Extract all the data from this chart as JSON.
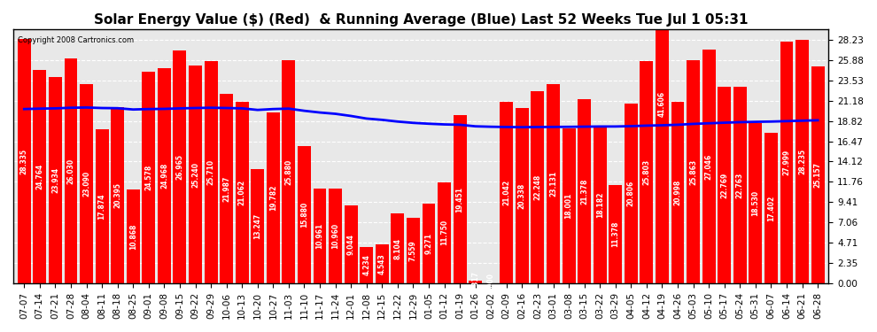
{
  "title": "Solar Energy Value ($) (Red)  & Running Average (Blue) Last 52 Weeks Tue Jul 1 05:31",
  "copyright": "Copyright 2008 Cartronics.com",
  "bar_color": "#ff0000",
  "avg_line_color": "#0000ff",
  "background_color": "#ffffff",
  "plot_bg_color": "#e8e8e8",
  "grid_color": "#ffffff",
  "categories": [
    "07-07",
    "07-14",
    "07-21",
    "07-28",
    "08-04",
    "08-11",
    "08-18",
    "08-25",
    "09-01",
    "09-08",
    "09-15",
    "09-22",
    "09-29",
    "10-06",
    "10-13",
    "10-20",
    "10-27",
    "11-03",
    "11-10",
    "11-17",
    "11-24",
    "12-01",
    "12-08",
    "12-15",
    "12-22",
    "12-29",
    "01-05",
    "01-12",
    "01-19",
    "01-26",
    "02-02",
    "02-09",
    "02-16",
    "02-23",
    "03-01",
    "03-08",
    "03-15",
    "03-22",
    "03-29",
    "04-05",
    "04-12",
    "04-19",
    "04-26",
    "05-03",
    "05-10",
    "05-17",
    "05-24",
    "05-31",
    "06-07",
    "06-14",
    "06-21",
    "06-28"
  ],
  "values": [
    28.335,
    24.764,
    23.934,
    26.03,
    23.09,
    17.874,
    20.395,
    10.868,
    24.578,
    24.968,
    26.965,
    25.24,
    25.71,
    21.987,
    21.062,
    13.247,
    19.782,
    25.88,
    15.88,
    10.961,
    10.96,
    9.044,
    4.234,
    4.543,
    8.104,
    7.559,
    9.271,
    11.75,
    19.451,
    0.317,
    0.0,
    21.042,
    20.338,
    22.248,
    23.131,
    18.001,
    21.378,
    18.182,
    11.378,
    20.806,
    25.803,
    41.606,
    20.998,
    25.863,
    27.046,
    22.769,
    22.763,
    18.53,
    17.402,
    27.999,
    28.235,
    25.157
  ],
  "running_avg": [
    20.2,
    20.25,
    20.28,
    20.35,
    20.38,
    20.32,
    20.3,
    20.15,
    20.2,
    20.22,
    20.28,
    20.32,
    20.35,
    20.32,
    20.28,
    20.1,
    20.2,
    20.25,
    20.0,
    19.8,
    19.65,
    19.4,
    19.1,
    18.95,
    18.75,
    18.6,
    18.5,
    18.42,
    18.38,
    18.2,
    18.15,
    18.12,
    18.1,
    18.12,
    18.13,
    18.14,
    18.16,
    18.18,
    18.18,
    18.22,
    18.28,
    18.32,
    18.38,
    18.48,
    18.55,
    18.62,
    18.68,
    18.72,
    18.75,
    18.8,
    18.85,
    18.9
  ],
  "yticks": [
    0.0,
    2.35,
    4.71,
    7.06,
    9.41,
    11.76,
    14.12,
    16.47,
    18.82,
    21.18,
    23.53,
    25.88,
    28.23
  ],
  "ylim": [
    0,
    29.5
  ],
  "title_fontsize": 11,
  "tick_fontsize": 7.5,
  "ylabel_fontsize": 8
}
